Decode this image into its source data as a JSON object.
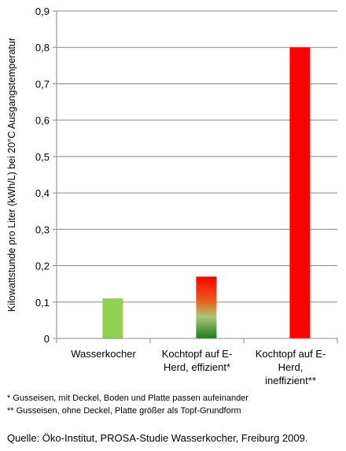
{
  "chart_data": {
    "type": "bar",
    "categories": [
      [
        "Wasserkocher"
      ],
      [
        "Kochtopf auf E-",
        "Herd, effizient*"
      ],
      [
        "Kochtopf auf E-",
        "Herd,",
        "ineffizient**"
      ]
    ],
    "values": [
      0.11,
      0.17,
      0.8
    ],
    "ylabel": "Kilowattstunde pro Liter (kWh/L) bei 20°C Ausgangstemperatur",
    "ylim": [
      0,
      0.9
    ],
    "ytick_step": 0.1,
    "ytick_labels": [
      "0",
      "0,1",
      "0,2",
      "0,3",
      "0,4",
      "0,5",
      "0,6",
      "0,7",
      "0,8",
      "0,9"
    ],
    "grid": true,
    "legend": "none",
    "bar_fills": [
      "solid-green",
      "gradient-red-to-green",
      "solid-red"
    ],
    "colors": {
      "green": "#92D050",
      "red": "#FF0000",
      "dark_green": "#1E7A1E",
      "grid": "#888888"
    }
  },
  "footnotes": [
    "* Gusseisen, mit Deckel, Boden und Platte passen aufeinander",
    "** Gusseisen, ohne Deckel, Platte größer als Topf-Grundform"
  ],
  "source": "Quelle: Öko-Institut, PROSA-Studie Wasserkocher, Freiburg 2009."
}
